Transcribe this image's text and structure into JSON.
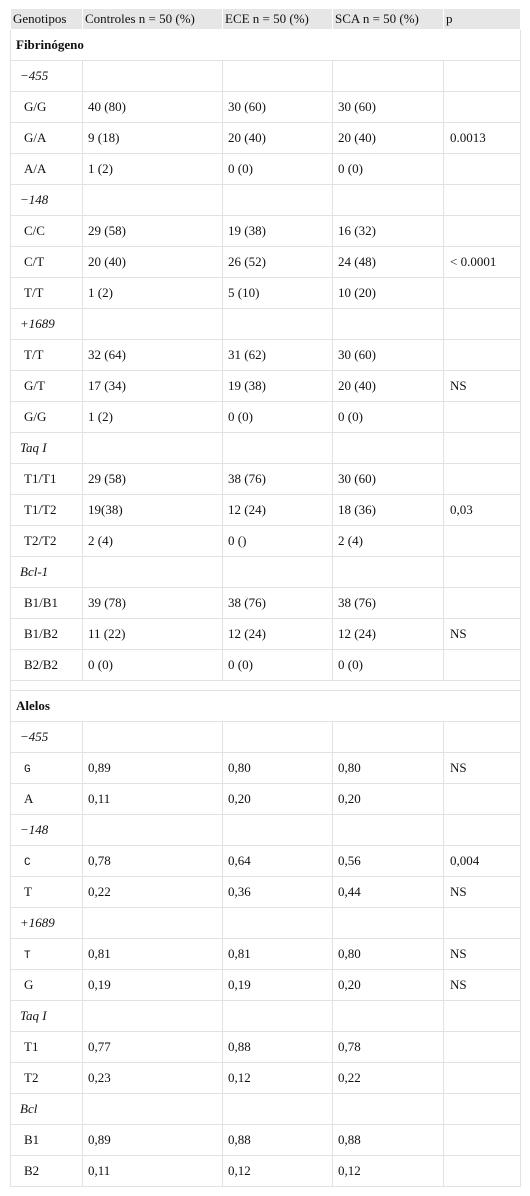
{
  "header": [
    "Genotipos",
    "Controles n = 50 (%)",
    "ECE n = 50 (%)",
    "SCA n = 50 (%)",
    "p"
  ],
  "sections": [
    {
      "title": "Fibrinógeno",
      "groups": [
        {
          "name": "−455",
          "rows": [
            {
              "label": "G/G",
              "cells": [
                "40 (80)",
                "30 (60)",
                "30 (60)"
              ]
            },
            {
              "label": "G/A",
              "cells": [
                "9 (18)",
                "20 (40)",
                "20 (40)"
              ],
              "p": "0.0013"
            },
            {
              "label": "A/A",
              "cells": [
                "1 (2)",
                "0 (0)",
                "0 (0)"
              ]
            }
          ]
        },
        {
          "name": "−148",
          "rows": [
            {
              "label": "C/C",
              "cells": [
                "29 (58)",
                "19 (38)",
                "16 (32)"
              ]
            },
            {
              "label": "C/T",
              "cells": [
                "20 (40)",
                "26 (52)",
                "24 (48)"
              ],
              "p": "< 0.0001"
            },
            {
              "label": "T/T",
              "cells": [
                "1 (2)",
                "5 (10)",
                "10 (20)"
              ]
            }
          ]
        },
        {
          "name": "+1689",
          "rows": [
            {
              "label": "T/T",
              "cells": [
                "32 (64)",
                "31 (62)",
                "30 (60)"
              ]
            },
            {
              "label": "G/T",
              "cells": [
                "17 (34)",
                "19 (38)",
                "20 (40)"
              ],
              "p": "NS"
            },
            {
              "label": "G/G",
              "cells": [
                "1 (2)",
                "0 (0)",
                "0 (0)"
              ]
            }
          ]
        },
        {
          "name": "Taq I",
          "rows": [
            {
              "label": "T1/T1",
              "cells": [
                "29 (58)",
                "38 (76)",
                "30 (60)"
              ]
            },
            {
              "label": "T1/T2",
              "cells": [
                "19(38)",
                "12 (24)",
                "18 (36)"
              ],
              "p": "0,03"
            },
            {
              "label": "T2/T2",
              "cells": [
                "2 (4)",
                "0 ()",
                "2 (4)"
              ]
            }
          ]
        },
        {
          "name": "Bcl-1",
          "rows": [
            {
              "label": "B1/B1",
              "cells": [
                "39 (78)",
                "38 (76)",
                "38 (76)"
              ]
            },
            {
              "label": "B1/B2",
              "cells": [
                "11 (22)",
                "12 (24)",
                "12 (24)"
              ],
              "p": "NS"
            },
            {
              "label": "B2/B2",
              "cells": [
                "0 (0)",
                "0 (0)",
                "0 (0)"
              ]
            }
          ]
        }
      ]
    },
    {
      "title": "Alelos",
      "groups": [
        {
          "name": "−455",
          "rows": [
            {
              "label": "G",
              "monospace": true,
              "cells": [
                "0,89",
                "0,80",
                "0,80"
              ],
              "p": "NS"
            },
            {
              "label": "A",
              "cells": [
                "0,11",
                "0,20",
                "0,20"
              ]
            }
          ]
        },
        {
          "name": "−148",
          "rows": [
            {
              "label": "C",
              "monospace": true,
              "cells": [
                "0,78",
                "0,64",
                "0,56"
              ],
              "p": "0,004"
            },
            {
              "label": "T",
              "cells": [
                "0,22",
                "0,36",
                "0,44"
              ],
              "p": "NS"
            }
          ]
        },
        {
          "name": "+1689",
          "rows": [
            {
              "label": "T",
              "monospace": true,
              "cells": [
                "0,81",
                "0,81",
                "0,80"
              ],
              "p": "NS"
            },
            {
              "label": "G",
              "cells": [
                "0,19",
                "0,19",
                "0,20"
              ],
              "p": "NS"
            }
          ]
        },
        {
          "name": "Taq I",
          "rows": [
            {
              "label": "T1",
              "cells": [
                "0,77",
                "0,88",
                "0,78"
              ]
            },
            {
              "label": "T2",
              "cells": [
                "0,23",
                "0,12",
                "0,22"
              ]
            }
          ]
        },
        {
          "name": "Bcl",
          "rows": [
            {
              "label": "B1",
              "cells": [
                "0,89",
                "0,88",
                "0,88"
              ]
            },
            {
              "label": "B2",
              "cells": [
                "0,11",
                "0,12",
                "0,12"
              ]
            }
          ]
        }
      ]
    }
  ]
}
